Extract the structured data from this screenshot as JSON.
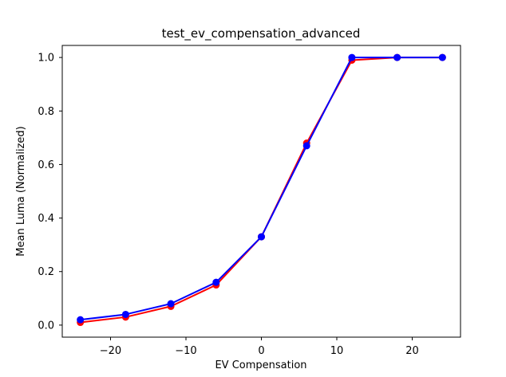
{
  "figure": {
    "background": "#ffffff",
    "plot_background": "#ffffff",
    "text_color": "#000000"
  },
  "chart_data": {
    "type": "line",
    "title": "test_ev_compensation_advanced",
    "xlabel": "EV Compensation",
    "ylabel": "Mean Luma (Normalized)",
    "x": [
      -24,
      -18,
      -12,
      -6,
      0,
      6,
      12,
      18,
      24
    ],
    "series": [
      {
        "name": "red",
        "color": "#ff0000",
        "marker": "circle",
        "values": [
          0.01,
          0.03,
          0.07,
          0.15,
          0.33,
          0.68,
          0.99,
          1.0,
          1.0
        ]
      },
      {
        "name": "blue",
        "color": "#0000ff",
        "marker": "circle",
        "values": [
          0.02,
          0.04,
          0.08,
          0.16,
          0.33,
          0.67,
          1.0,
          1.0,
          1.0
        ]
      }
    ],
    "xlim": [
      -26.4,
      26.4
    ],
    "ylim": [
      -0.045,
      1.045
    ],
    "xticks": {
      "values": [
        -20,
        -10,
        0,
        10,
        20
      ],
      "labels": [
        "−20",
        "−10",
        "0",
        "10",
        "20"
      ]
    },
    "yticks": {
      "values": [
        0.0,
        0.2,
        0.4,
        0.6,
        0.8,
        1.0
      ],
      "labels": [
        "0.0",
        "0.2",
        "0.4",
        "0.6",
        "0.8",
        "1.0"
      ]
    },
    "grid": false,
    "legend": null
  }
}
